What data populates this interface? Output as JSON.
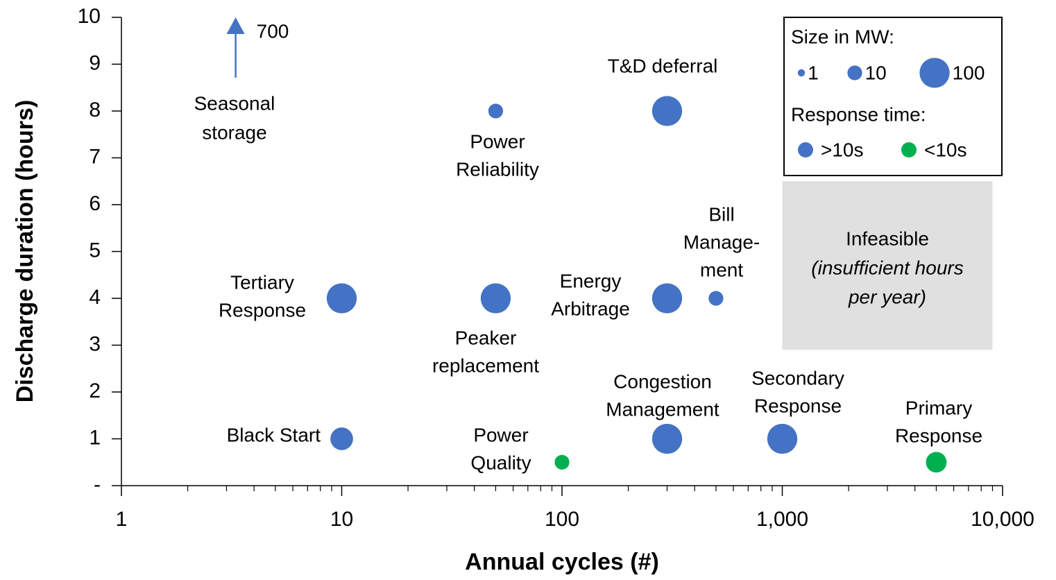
{
  "chart_data": {
    "type": "scatter",
    "x_label": "Annual cycles (#)",
    "y_label": "Discharge duration (hours)",
    "xscale": "log",
    "xlim": [
      1,
      10000
    ],
    "xticks": [
      1,
      10,
      100,
      {
        "value": 1000,
        "label": "1,000"
      },
      {
        "value": 10000,
        "label": "10,000"
      }
    ],
    "ylim": [
      0,
      10
    ],
    "yticks": [
      {
        "value": 0,
        "label": "-"
      },
      1,
      2,
      3,
      4,
      5,
      6,
      7,
      8,
      9,
      10
    ],
    "series": [
      {
        "name": ">10s",
        "color": "#4472c4",
        "points": [
          {
            "label": [
              "Tertiary",
              "Response"
            ],
            "x": 10,
            "y": 4,
            "size": 100
          },
          {
            "label": [
              "Peaker",
              "replacement"
            ],
            "x": 50,
            "y": 4,
            "size": 100
          },
          {
            "label": [
              "Power",
              "Reliability"
            ],
            "x": 50,
            "y": 8,
            "size": 10
          },
          {
            "label": [
              "T&D deferral"
            ],
            "x": 300,
            "y": 8,
            "size": 100
          },
          {
            "label": [
              "Energy",
              "Arbitrage"
            ],
            "x": 300,
            "y": 4,
            "size": 100
          },
          {
            "label": [
              "Bill",
              "Manage-",
              "ment"
            ],
            "x": 500,
            "y": 4,
            "size": 10
          },
          {
            "label": [
              "Black Start"
            ],
            "x": 10,
            "y": 1,
            "size": 40
          },
          {
            "label": [
              "Congestion",
              "Management"
            ],
            "x": 300,
            "y": 1,
            "size": 100
          },
          {
            "label": [
              "Secondary",
              "Response"
            ],
            "x": 1000,
            "y": 1,
            "size": 100
          }
        ]
      },
      {
        "name": "<10s",
        "color": "#00b050",
        "points": [
          {
            "label": [
              "Power",
              "Quality"
            ],
            "x": 100,
            "y": 0.5,
            "size": 10
          },
          {
            "label": [
              "Primary",
              "Response"
            ],
            "x": 5000,
            "y": 0.5,
            "size": 30
          }
        ]
      }
    ],
    "annotations": [
      {
        "label": [
          "Seasonal",
          "storage"
        ],
        "x": 3.3,
        "y": 700
      }
    ],
    "region": {
      "x": [
        1000,
        9000
      ],
      "y": [
        2.9,
        6.5
      ],
      "color": "#e0e0e0",
      "lines": [
        "Infeasible",
        "(insufficient hours",
        "per year)"
      ]
    },
    "size_legend": {
      "title": "Size in MW:",
      "sizes": [
        1,
        10,
        100
      ]
    },
    "color_legend_title": "Response time:"
  }
}
